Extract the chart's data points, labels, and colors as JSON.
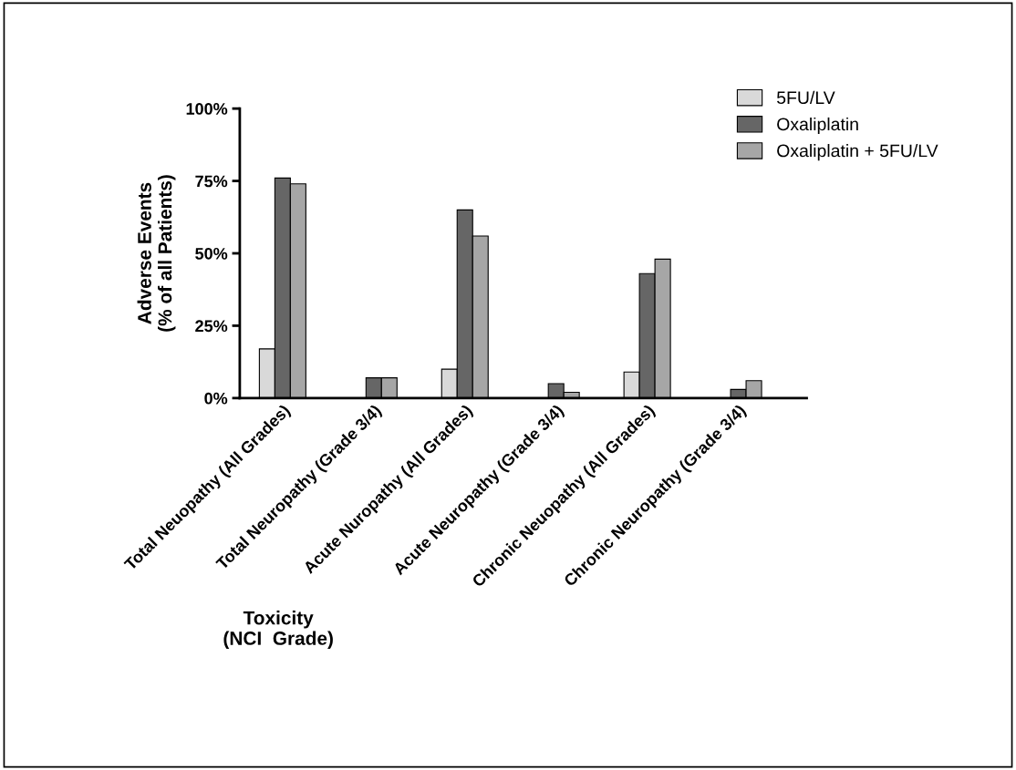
{
  "chart_data": {
    "type": "bar",
    "xlabel": "Toxicity\n(NCI  Grade)",
    "ylabel": "Adverse Events\n(% of all Patients)",
    "categories": [
      "Total Neuopathy (All Grades)",
      "Total Neuropathy (Grade 3/4)",
      "Acute Nuropathy (All Grades)",
      "Acute Neuropathy (Grade 3/4)",
      "Chronic Neuopathy (All Grades)",
      "Chronic Neuropathy (Grade 3/4)"
    ],
    "series": [
      {
        "name": "5FU/LV",
        "color": "#d9d9d9",
        "values": [
          17,
          null,
          10,
          null,
          9,
          null
        ]
      },
      {
        "name": "Oxaliplatin",
        "color": "#666666",
        "values": [
          76,
          7,
          65,
          5,
          43,
          3
        ]
      },
      {
        "name": "Oxaliplatin + 5FU/LV",
        "color": "#a6a6a6",
        "values": [
          74,
          7,
          56,
          2,
          48,
          6
        ]
      }
    ],
    "ylim": [
      0,
      100
    ],
    "yticks": [
      {
        "value": 0,
        "label": "0%"
      },
      {
        "value": 25,
        "label": "25%"
      },
      {
        "value": 50,
        "label": "50%"
      },
      {
        "value": 75,
        "label": "75%"
      },
      {
        "value": 100,
        "label": "100%"
      }
    ],
    "grid": false,
    "legend": "top right"
  }
}
